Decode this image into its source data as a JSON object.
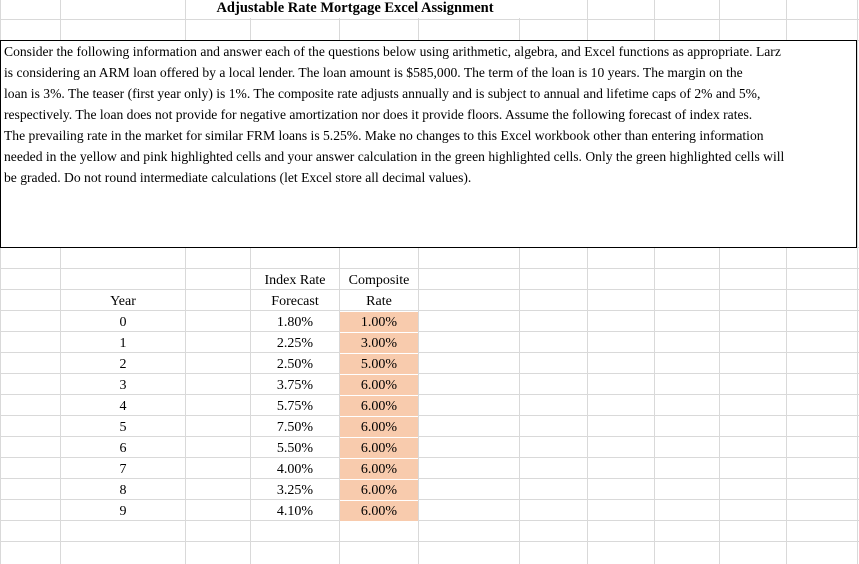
{
  "title": "Adjustable Rate Mortgage Excel Assignment",
  "instructions": [
    "Consider the following information and answer each of the questions below using arithmetic, algebra, and Excel functions as appropriate.  Larz",
    "is considering an ARM loan offered by a local lender.  The loan amount is $585,000.  The term of the loan is 10 years.  The margin on the",
    "loan is 3%.  The teaser (first year only) is 1%.  The composite rate adjusts annually and is subject to annual and lifetime caps of 2% and 5%,",
    "respectively.  The loan does not provide for negative amortization nor does it provide floors.  Assume the following forecast of index rates.",
    "The prevailing rate in the market for similar FRM loans is 5.25%.  Make no changes to this Excel workbook other than entering information",
    "needed in the yellow and pink highlighted cells and your answer calculation in the green highlighted cells.  Only the green highlighted cells will",
    "be graded.  Do not round intermediate calculations (let Excel store all decimal values)."
  ],
  "table": {
    "header_top": [
      "Index Rate",
      "Composite"
    ],
    "header_bottom": [
      "Year",
      "Forecast",
      "Rate"
    ],
    "rows": [
      [
        "0",
        "1.80%",
        "1.00%"
      ],
      [
        "1",
        "2.25%",
        "3.00%"
      ],
      [
        "2",
        "2.50%",
        "5.00%"
      ],
      [
        "3",
        "3.75%",
        "6.00%"
      ],
      [
        "4",
        "5.75%",
        "6.00%"
      ],
      [
        "5",
        "7.50%",
        "6.00%"
      ],
      [
        "6",
        "5.50%",
        "6.00%"
      ],
      [
        "7",
        "4.00%",
        "6.00%"
      ],
      [
        "8",
        "3.25%",
        "6.00%"
      ],
      [
        "9",
        "4.10%",
        "6.00%"
      ]
    ]
  }
}
